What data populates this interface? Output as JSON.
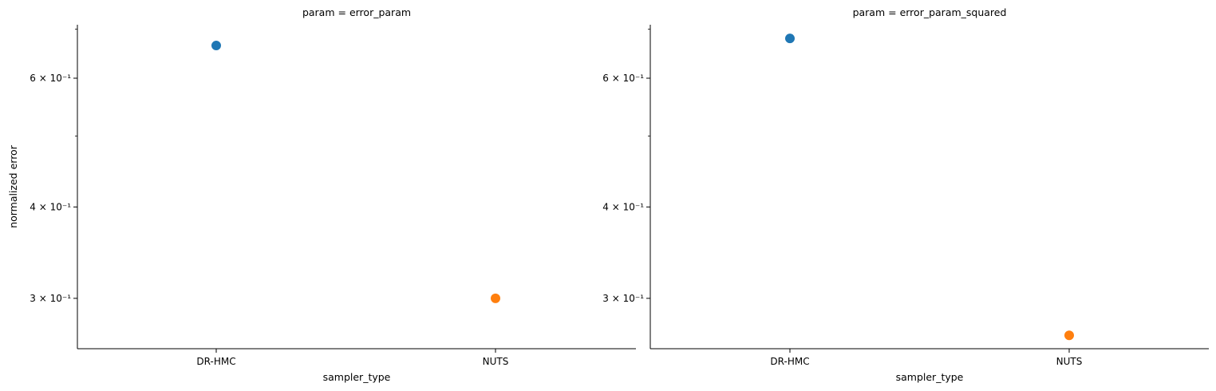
{
  "chart_data": [
    {
      "type": "scatter",
      "title": "param = error_param",
      "xlabel": "sampler_type",
      "ylabel": "normalized error",
      "categories": [
        "DR-HMC",
        "NUTS"
      ],
      "points": [
        {
          "x": "DR-HMC",
          "y": 0.665,
          "color": "#1f77b4"
        },
        {
          "x": "NUTS",
          "y": 0.3,
          "color": "#ff7f0e"
        }
      ],
      "yscale": "log",
      "ylim": [
        0.256,
        0.71
      ],
      "yticks": [
        {
          "value": 0.6,
          "label": "6 × 10⁻¹"
        },
        {
          "value": 0.4,
          "label": "4 × 10⁻¹"
        },
        {
          "value": 0.3,
          "label": "3 × 10⁻¹"
        }
      ],
      "yminor": [
        0.5
      ],
      "grid": false
    },
    {
      "type": "scatter",
      "title": "param = error_param_squared",
      "xlabel": "sampler_type",
      "ylabel": "",
      "categories": [
        "DR-HMC",
        "NUTS"
      ],
      "points": [
        {
          "x": "DR-HMC",
          "y": 0.68,
          "color": "#1f77b4"
        },
        {
          "x": "NUTS",
          "y": 0.267,
          "color": "#ff7f0e"
        }
      ],
      "yscale": "log",
      "ylim": [
        0.256,
        0.71
      ],
      "yticks": [
        {
          "value": 0.6,
          "label": "6 × 10⁻¹"
        },
        {
          "value": 0.4,
          "label": "4 × 10⁻¹"
        },
        {
          "value": 0.3,
          "label": "3 × 10⁻¹"
        }
      ],
      "yminor": [
        0.5
      ],
      "grid": false
    }
  ]
}
